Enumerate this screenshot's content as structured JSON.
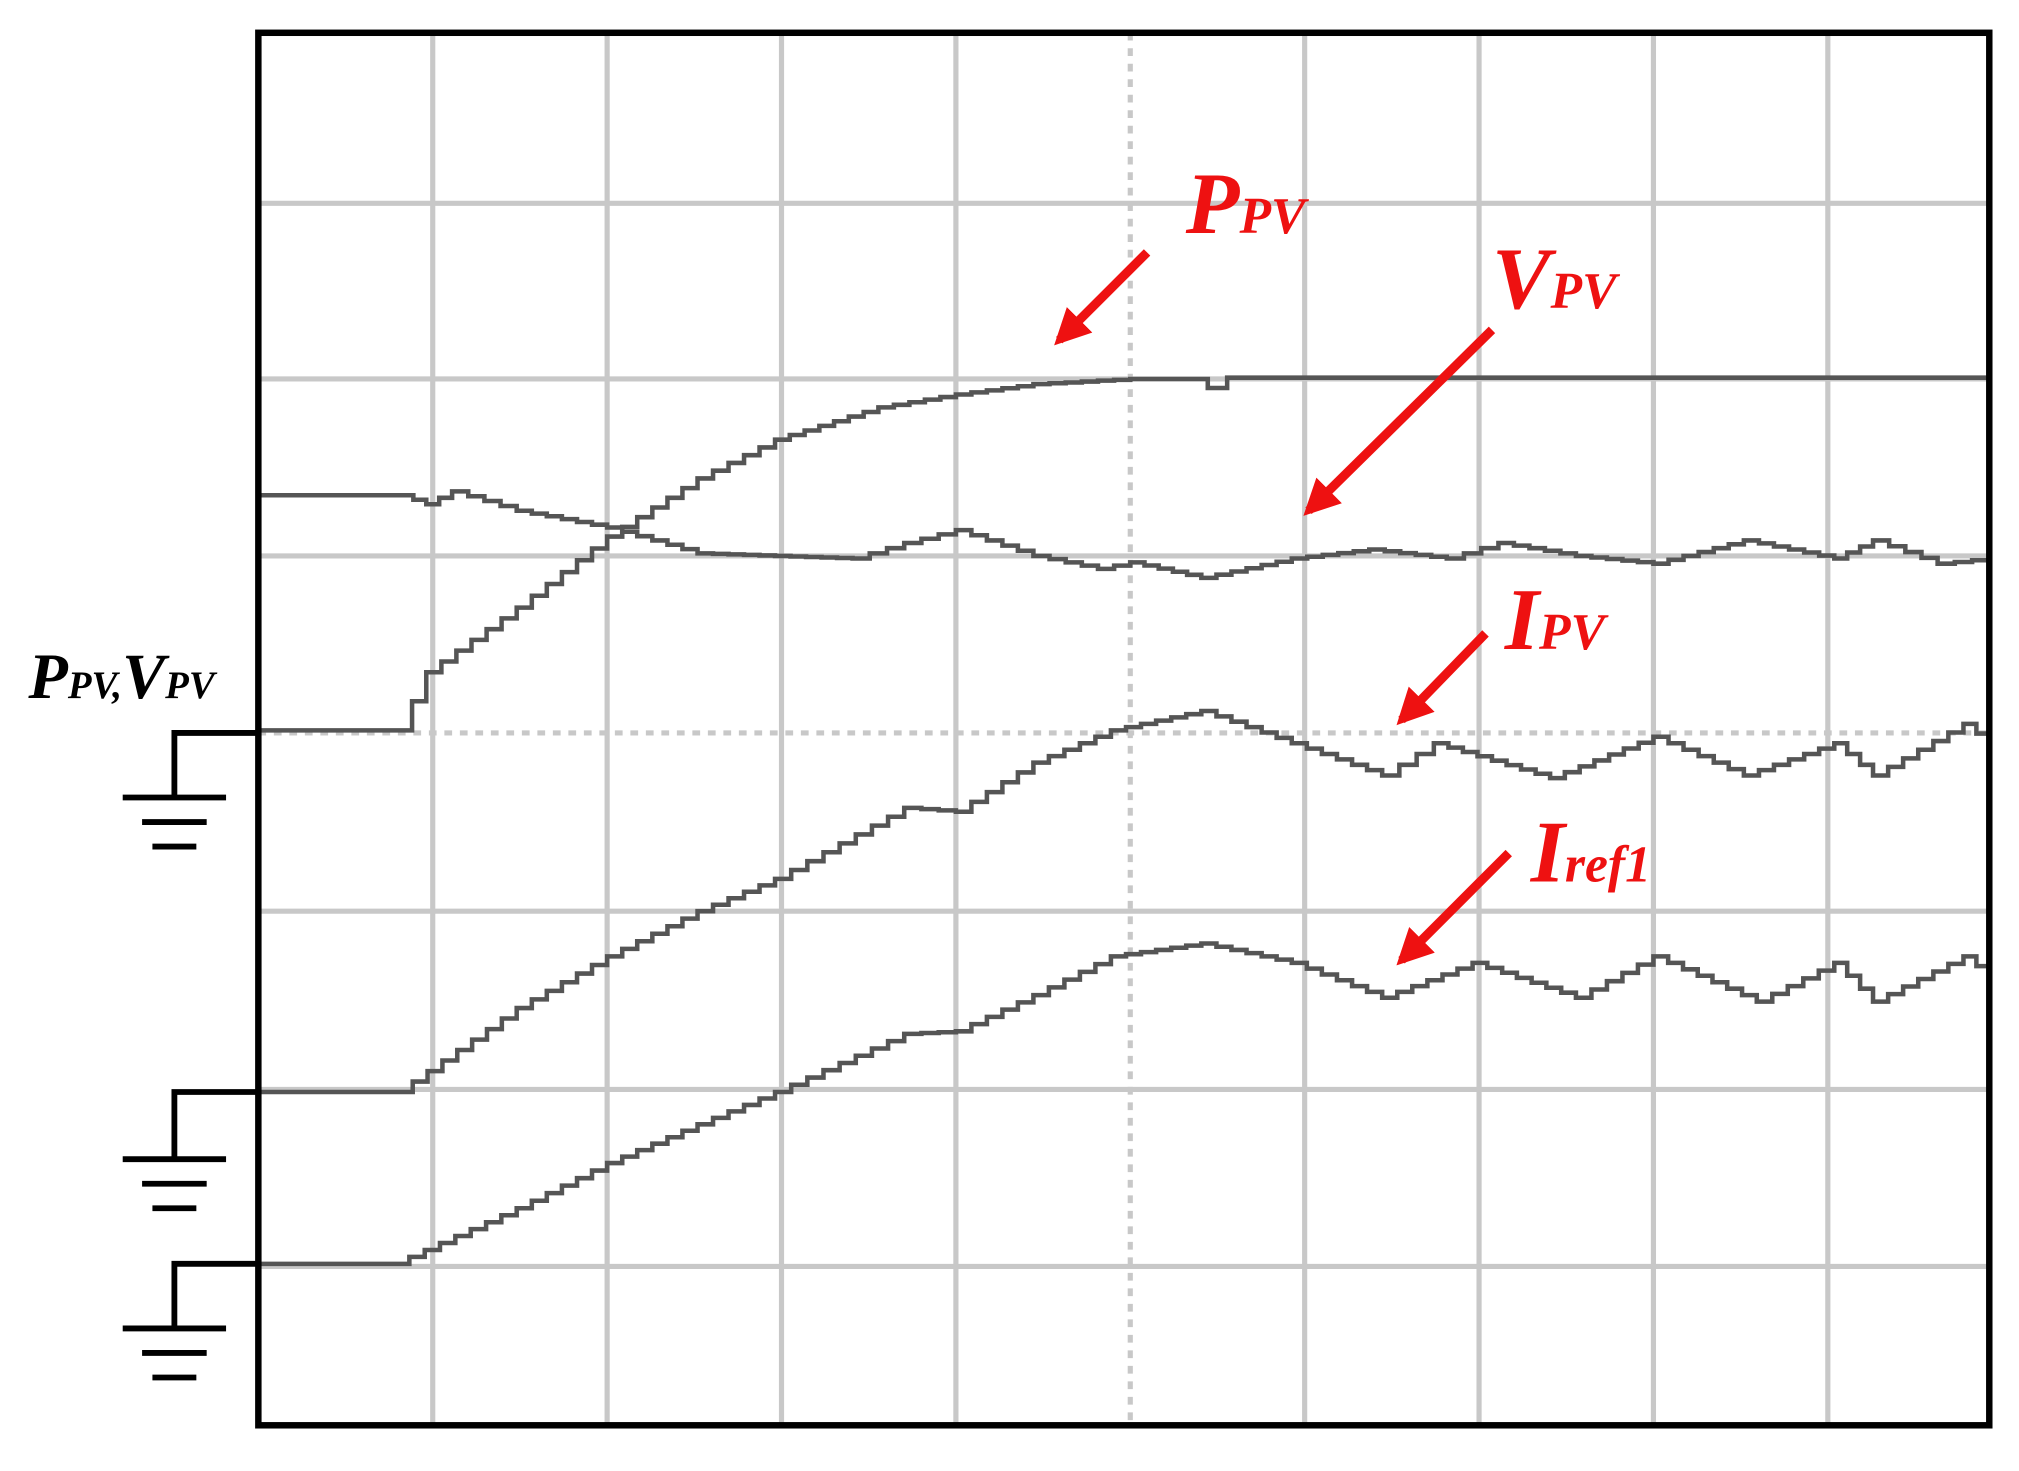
{
  "labels": [
    {
      "main": "P",
      "sub": "PV"
    },
    {
      "main": "V",
      "sub": "PV"
    },
    {
      "main": "I",
      "sub": "PV"
    },
    {
      "main": "I",
      "sub": "ref1"
    }
  ],
  "axis_label": [
    {
      "main": "P",
      "sub": "PV,"
    },
    {
      "main": "V",
      "sub": "PV"
    }
  ]
}
